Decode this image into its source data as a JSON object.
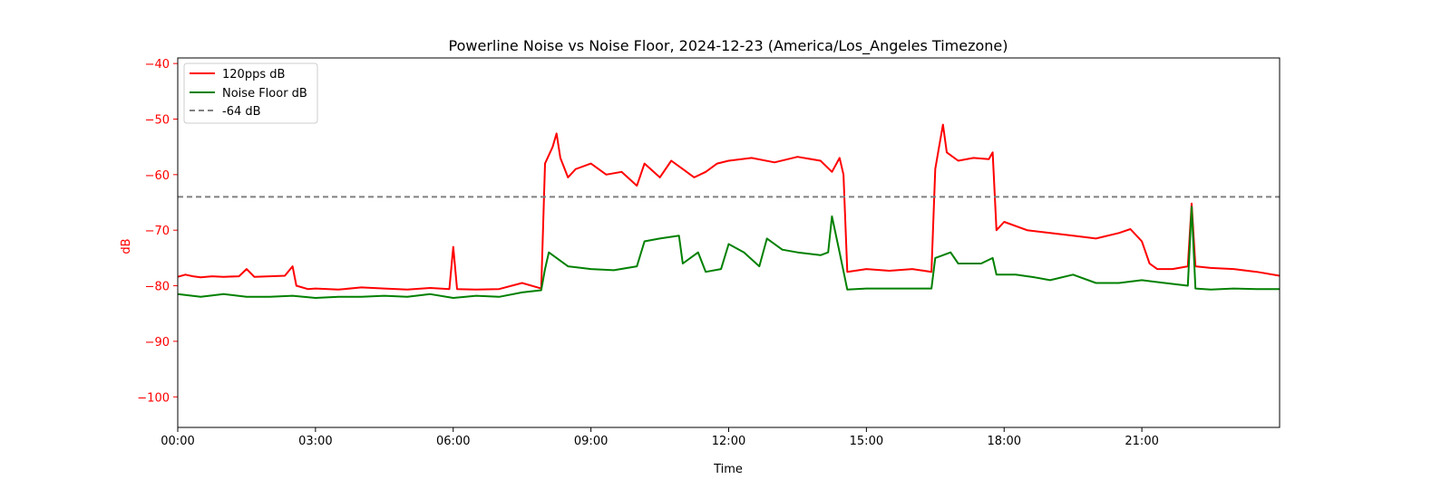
{
  "chart_data": {
    "type": "line",
    "title": "Powerline Noise vs Noise Floor, 2024-12-23 (America/Los_Angeles Timezone)",
    "xlabel": "Time",
    "ylabel": "dB",
    "xlim": [
      "00:00",
      "24:00"
    ],
    "ylim": [
      -105.5,
      -39
    ],
    "x_ticks": [
      "00:00",
      "03:00",
      "06:00",
      "09:00",
      "12:00",
      "15:00",
      "18:00",
      "21:00"
    ],
    "y_ticks": [
      -40,
      -50,
      -60,
      -70,
      -80,
      -90,
      -100
    ],
    "y_tick_labels": [
      "−40",
      "−50",
      "−60",
      "−70",
      "−80",
      "−90",
      "−100"
    ],
    "grid": false,
    "legend_position": "top-left",
    "reference_line": {
      "name": "-64 dB",
      "value": -64,
      "color": "#808080",
      "style": "dashed"
    },
    "series": [
      {
        "name": "120pps dB",
        "color": "#ff0000",
        "points": [
          [
            "00:00",
            -78.4
          ],
          [
            "00:10",
            -78.0
          ],
          [
            "00:20",
            -78.3
          ],
          [
            "00:30",
            -78.5
          ],
          [
            "00:45",
            -78.3
          ],
          [
            "01:00",
            -78.4
          ],
          [
            "01:20",
            -78.3
          ],
          [
            "01:30",
            -77.0
          ],
          [
            "01:40",
            -78.4
          ],
          [
            "02:00",
            -78.3
          ],
          [
            "02:20",
            -78.2
          ],
          [
            "02:30",
            -76.5
          ],
          [
            "02:35",
            -80.0
          ],
          [
            "02:50",
            -80.6
          ],
          [
            "03:00",
            -80.5
          ],
          [
            "03:30",
            -80.7
          ],
          [
            "04:00",
            -80.3
          ],
          [
            "04:30",
            -80.5
          ],
          [
            "05:00",
            -80.7
          ],
          [
            "05:30",
            -80.4
          ],
          [
            "05:55",
            -80.6
          ],
          [
            "06:00",
            -73.0
          ],
          [
            "06:05",
            -80.6
          ],
          [
            "06:30",
            -80.7
          ],
          [
            "07:00",
            -80.6
          ],
          [
            "07:30",
            -79.5
          ],
          [
            "07:55",
            -80.5
          ],
          [
            "08:00",
            -58.0
          ],
          [
            "08:10",
            -55.0
          ],
          [
            "08:15",
            -52.6
          ],
          [
            "08:20",
            -57.0
          ],
          [
            "08:30",
            -60.5
          ],
          [
            "08:40",
            -59.0
          ],
          [
            "09:00",
            -58.0
          ],
          [
            "09:20",
            -60.0
          ],
          [
            "09:40",
            -59.5
          ],
          [
            "10:00",
            -62.0
          ],
          [
            "10:10",
            -58.0
          ],
          [
            "10:30",
            -60.5
          ],
          [
            "10:45",
            -57.5
          ],
          [
            "11:00",
            -59.0
          ],
          [
            "11:15",
            -60.5
          ],
          [
            "11:30",
            -59.5
          ],
          [
            "11:45",
            -58.0
          ],
          [
            "12:00",
            -57.5
          ],
          [
            "12:30",
            -57.0
          ],
          [
            "13:00",
            -57.8
          ],
          [
            "13:30",
            -56.8
          ],
          [
            "14:00",
            -57.5
          ],
          [
            "14:15",
            -59.5
          ],
          [
            "14:25",
            -57.0
          ],
          [
            "14:30",
            -60.0
          ],
          [
            "14:35",
            -77.5
          ],
          [
            "15:00",
            -77.0
          ],
          [
            "15:30",
            -77.3
          ],
          [
            "16:00",
            -77.0
          ],
          [
            "16:25",
            -77.5
          ],
          [
            "16:30",
            -59.0
          ],
          [
            "16:35",
            -55.0
          ],
          [
            "16:40",
            -51.0
          ],
          [
            "16:45",
            -56.0
          ],
          [
            "17:00",
            -57.5
          ],
          [
            "17:20",
            -57.0
          ],
          [
            "17:40",
            -57.2
          ],
          [
            "17:45",
            -56.0
          ],
          [
            "17:50",
            -70.0
          ],
          [
            "18:00",
            -68.5
          ],
          [
            "18:30",
            -70.0
          ],
          [
            "19:00",
            -70.5
          ],
          [
            "19:30",
            -71.0
          ],
          [
            "20:00",
            -71.5
          ],
          [
            "20:30",
            -70.5
          ],
          [
            "20:45",
            -69.8
          ],
          [
            "21:00",
            -72.0
          ],
          [
            "21:10",
            -76.0
          ],
          [
            "21:20",
            -77.0
          ],
          [
            "21:40",
            -77.0
          ],
          [
            "22:00",
            -76.5
          ],
          [
            "22:05",
            -65.2
          ],
          [
            "22:10",
            -76.5
          ],
          [
            "22:30",
            -76.8
          ],
          [
            "23:00",
            -77.0
          ],
          [
            "23:30",
            -77.5
          ],
          [
            "24:00",
            -78.2
          ]
        ]
      },
      {
        "name": "Noise Floor dB",
        "color": "#008000",
        "points": [
          [
            "00:00",
            -81.5
          ],
          [
            "00:30",
            -82.0
          ],
          [
            "01:00",
            -81.5
          ],
          [
            "01:30",
            -82.0
          ],
          [
            "02:00",
            -82.0
          ],
          [
            "02:30",
            -81.8
          ],
          [
            "03:00",
            -82.2
          ],
          [
            "03:30",
            -82.0
          ],
          [
            "04:00",
            -82.0
          ],
          [
            "04:30",
            -81.8
          ],
          [
            "05:00",
            -82.0
          ],
          [
            "05:30",
            -81.5
          ],
          [
            "06:00",
            -82.2
          ],
          [
            "06:30",
            -81.8
          ],
          [
            "07:00",
            -82.0
          ],
          [
            "07:30",
            -81.2
          ],
          [
            "07:55",
            -80.8
          ],
          [
            "08:00",
            -77.0
          ],
          [
            "08:05",
            -74.0
          ],
          [
            "08:30",
            -76.5
          ],
          [
            "09:00",
            -77.0
          ],
          [
            "09:30",
            -77.2
          ],
          [
            "10:00",
            -76.5
          ],
          [
            "10:10",
            -72.0
          ],
          [
            "10:30",
            -71.5
          ],
          [
            "10:55",
            -71.0
          ],
          [
            "11:00",
            -76.0
          ],
          [
            "11:20",
            -74.0
          ],
          [
            "11:30",
            -77.5
          ],
          [
            "11:50",
            -77.0
          ],
          [
            "12:00",
            -72.5
          ],
          [
            "12:20",
            -74.0
          ],
          [
            "12:40",
            -76.5
          ],
          [
            "12:50",
            -71.5
          ],
          [
            "13:10",
            -73.5
          ],
          [
            "13:30",
            -74.0
          ],
          [
            "14:00",
            -74.5
          ],
          [
            "14:10",
            -74.0
          ],
          [
            "14:15",
            -67.5
          ],
          [
            "14:25",
            -74.0
          ],
          [
            "14:35",
            -80.7
          ],
          [
            "15:00",
            -80.5
          ],
          [
            "16:00",
            -80.5
          ],
          [
            "16:25",
            -80.5
          ],
          [
            "16:30",
            -75.0
          ],
          [
            "16:40",
            -74.5
          ],
          [
            "16:50",
            -74.0
          ],
          [
            "17:00",
            -76.0
          ],
          [
            "17:30",
            -76.0
          ],
          [
            "17:45",
            -75.0
          ],
          [
            "17:50",
            -78.0
          ],
          [
            "18:15",
            -78.0
          ],
          [
            "18:40",
            -78.5
          ],
          [
            "19:00",
            -79.0
          ],
          [
            "19:30",
            -78.0
          ],
          [
            "20:00",
            -79.5
          ],
          [
            "20:30",
            -79.5
          ],
          [
            "21:00",
            -79.0
          ],
          [
            "21:30",
            -79.5
          ],
          [
            "22:00",
            -80.0
          ],
          [
            "22:05",
            -65.8
          ],
          [
            "22:10",
            -80.5
          ],
          [
            "22:30",
            -80.7
          ],
          [
            "23:00",
            -80.5
          ],
          [
            "23:30",
            -80.6
          ],
          [
            "24:00",
            -80.6
          ]
        ]
      }
    ]
  }
}
